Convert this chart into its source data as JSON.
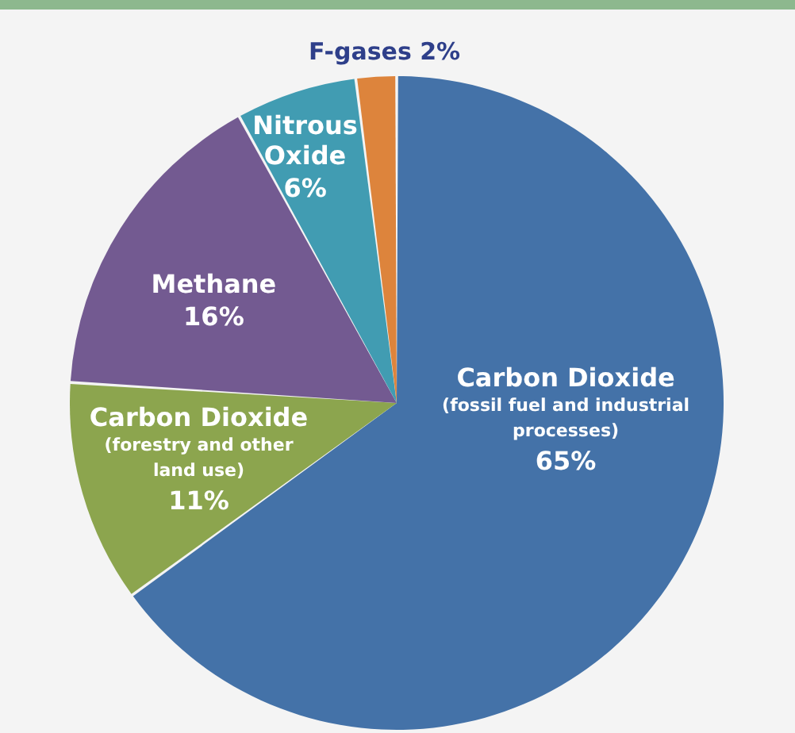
{
  "chart_data": {
    "type": "pie",
    "categories": [
      "Carbon Dioxide (fossil fuel and industrial processes)",
      "Carbon Dioxide (forestry and other land use)",
      "Methane",
      "Nitrous Oxide",
      "F-gases"
    ],
    "values": [
      65,
      11,
      16,
      6,
      2
    ],
    "value_labels": [
      "65%",
      "11%",
      "16%",
      "6%",
      "2%"
    ],
    "colors": [
      "#4472a8",
      "#8ca54e",
      "#735a91",
      "#419cb2",
      "#dd843c"
    ]
  }
}
